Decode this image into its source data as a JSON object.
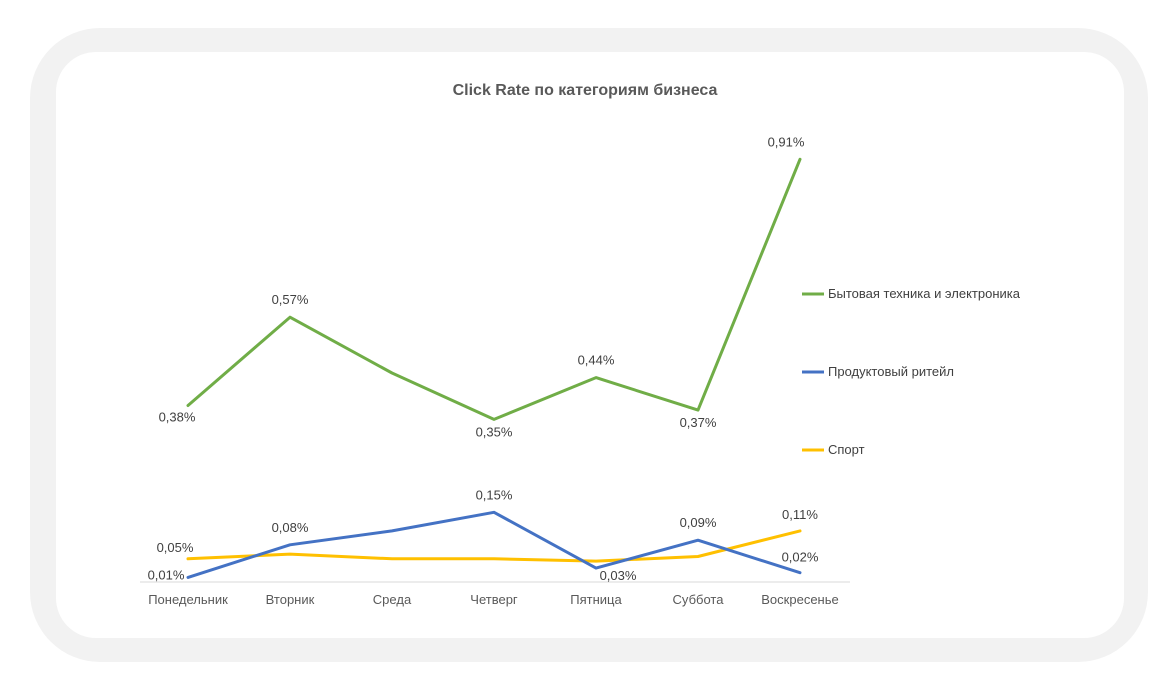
{
  "chart_data": {
    "type": "line",
    "title": "Click Rate по категориям бизнеса",
    "categories": [
      "Понедельник",
      "Вторник",
      "Среда",
      "Четверг",
      "Пятница",
      "Суббота",
      "Воскресенье"
    ],
    "y_unit": "%",
    "ylim": [
      0,
      0.95
    ],
    "grid": false,
    "legend_position": "right",
    "series": [
      {
        "name": "Бытовая техника и электроника",
        "color": "#70ad47",
        "values": [
          0.38,
          0.57,
          0.45,
          0.35,
          0.44,
          0.37,
          0.91
        ],
        "labels": [
          "0,38%",
          "0,57%",
          "",
          "0,35%",
          "0,44%",
          "0,37%",
          "0,91%"
        ]
      },
      {
        "name": "Продуктовый ритейл",
        "color": "#4472c4",
        "values": [
          0.01,
          0.08,
          0.11,
          0.15,
          0.03,
          0.09,
          0.02
        ],
        "labels": [
          "0,01%",
          "0,08%",
          "",
          "0,15%",
          "0,03%",
          "0,09%",
          "0,02%"
        ]
      },
      {
        "name": "Спорт",
        "color": "#ffc000",
        "values": [
          0.05,
          0.06,
          0.05,
          0.05,
          0.045,
          0.055,
          0.11
        ],
        "labels": [
          "0,05%",
          "",
          "",
          "",
          "",
          "",
          "0,11%"
        ]
      }
    ]
  }
}
